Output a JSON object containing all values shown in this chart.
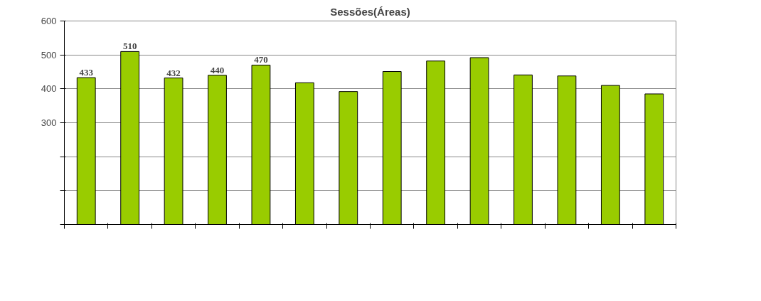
{
  "chart_data": {
    "type": "bar",
    "title": "Sessões(Áreas)",
    "categories": [
      null,
      null,
      null,
      null,
      null,
      null,
      null,
      null,
      null,
      null,
      null,
      null,
      null,
      null
    ],
    "series": [
      {
        "color": "#99cc00",
        "values": [
          433,
          510,
          432,
          440,
          470,
          418,
          392,
          451,
          482,
          492,
          441,
          438,
          410,
          385
        ]
      }
    ],
    "value_labels": [
      "433",
      "510",
      "432",
      "440",
      "470",
      null,
      null,
      null,
      null,
      null,
      null,
      null,
      null,
      null
    ],
    "ylim": [
      0,
      600
    ],
    "yticks": [
      {
        "value": 0,
        "label": null
      },
      {
        "value": 100,
        "label": null
      },
      {
        "value": 200,
        "label": null
      },
      300,
      400,
      500,
      600
    ],
    "grid": "y"
  }
}
